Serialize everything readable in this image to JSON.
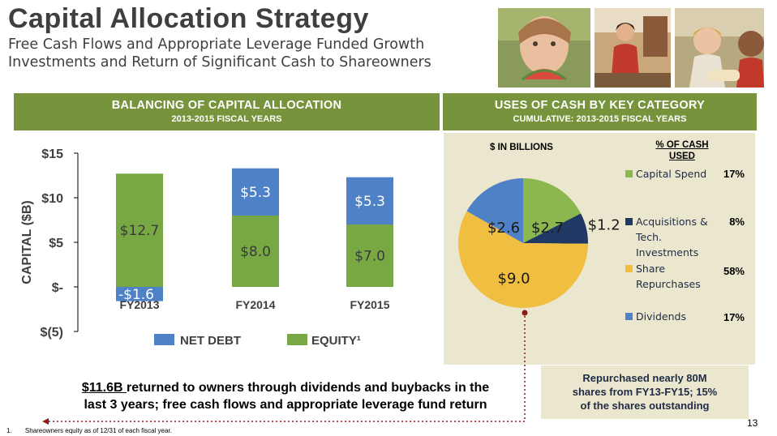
{
  "header": {
    "title": "Capital Allocation Strategy",
    "subtitle_line1": "Free Cash Flows and Appropriate Leverage Funded Growth",
    "subtitle_line2": "Investments and Return of Significant Cash to Shareowners"
  },
  "left_panel": {
    "band_title": "BALANCING OF CAPITAL ALLOCATION",
    "band_subtitle": "2013-2015 FISCAL YEARS"
  },
  "right_panel": {
    "band_title": "USES OF CASH BY KEY CATEGORY",
    "band_subtitle": "CUMULATIVE: 2013-2015 FISCAL YEARS",
    "units_label": "$ IN BILLIONS",
    "pct_header_line1": "% OF CASH",
    "pct_header_line2": "USED"
  },
  "colors": {
    "band_green": "#77933c",
    "equity_green": "#77a843",
    "net_debt_blue": "#4f81c6",
    "capital_spend_green": "#8ab84e",
    "acquisitions_navy": "#1f3864",
    "share_repurchase_gold": "#f0be41",
    "dividends_blue": "#4f81c6",
    "panel_beige": "#ebe7cf"
  },
  "chart_data": [
    {
      "type": "bar",
      "stacked": true,
      "categories": [
        "FY2013",
        "FY2014",
        "FY2015"
      ],
      "series": [
        {
          "name": "EQUITY¹",
          "color": "#77a843",
          "values": [
            12.7,
            8.0,
            7.0
          ],
          "labels": [
            "$12.7",
            "$8.0",
            "$7.0"
          ]
        },
        {
          "name": "NET DEBT",
          "color": "#4f81c6",
          "values": [
            -1.6,
            5.3,
            5.3
          ],
          "labels": [
            "-$1.6",
            "$5.3",
            "$5.3"
          ]
        }
      ],
      "ylabel": "CAPITAL ($B)",
      "ylim": [
        -5,
        15
      ],
      "yticks": [
        15,
        10,
        5,
        0,
        -5
      ],
      "ytick_labels": [
        "$15",
        "$10",
        "$5",
        "$-",
        "$(5)"
      ],
      "legend": "bottom",
      "grid": false
    },
    {
      "type": "pie",
      "slices": [
        {
          "name": "Capital Spend",
          "value": 2.7,
          "label": "$2.7",
          "pct": "17%",
          "color": "#8ab84e"
        },
        {
          "name": "Acquisitions & Tech. Investments",
          "value": 1.2,
          "label": "$1.2",
          "pct": "8%",
          "color": "#1f3864"
        },
        {
          "name": "Share Repurchases",
          "value": 9.0,
          "label": "$9.0",
          "pct": "58%",
          "color": "#f0be41"
        },
        {
          "name": "Dividends",
          "value": 2.6,
          "label": "$2.6",
          "pct": "17%",
          "color": "#4f81c6"
        }
      ],
      "legend": "right"
    }
  ],
  "legend_text": {
    "capital_spend": "Capital Spend",
    "acq_line1": "Acquisitions &",
    "acq_line2": "Tech.",
    "acq_line3": "Investments",
    "share_line1": "Share",
    "share_line2": "Repurchases",
    "dividends": "Dividends"
  },
  "summary": {
    "highlight": "$11.6B ",
    "rest_line1": "returned to owners through dividends and buybacks in the",
    "line2": "last 3 years; free cash flows and appropriate leverage fund return"
  },
  "repurchase_box": {
    "line1": "Repurchased nearly 80M",
    "line2": "shares from FY13-FY15;  15%",
    "line3": "of the shares outstanding"
  },
  "footnote": {
    "number": "1.",
    "text": "Shareowners  equity as of 12/31 of each fiscal year."
  },
  "page_number": "13"
}
